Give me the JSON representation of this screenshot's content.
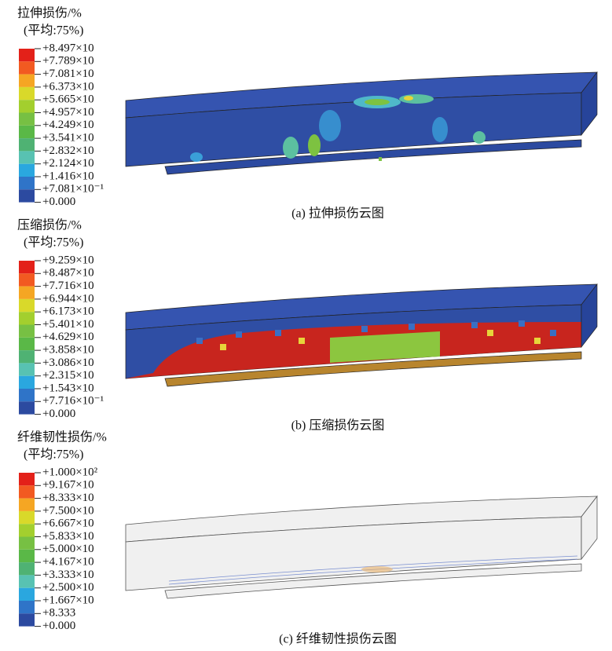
{
  "panels": [
    {
      "legend": {
        "title": "拉伸损伤/%",
        "subtitle": "(平均:75%)",
        "labels": [
          "+8.497×10",
          "+7.789×10",
          "+7.081×10",
          "+6.373×10",
          "+5.665×10",
          "+4.957×10",
          "+4.249×10",
          "+3.541×10",
          "+2.832×10",
          "+2.124×10",
          "+1.416×10",
          "+7.081×10⁻¹",
          "+0.000"
        ]
      },
      "caption": "(a) 拉伸损伤云图"
    },
    {
      "legend": {
        "title": "压缩损伤/%",
        "subtitle": "(平均:75%)",
        "labels": [
          "+9.259×10",
          "+8.487×10",
          "+7.716×10",
          "+6.944×10",
          "+6.173×10",
          "+5.401×10",
          "+4.629×10",
          "+3.858×10",
          "+3.086×10",
          "+2.315×10",
          "+1.543×10",
          "+7.716×10⁻¹",
          "+0.000"
        ]
      },
      "caption": "(b) 压缩损伤云图"
    },
    {
      "legend": {
        "title": "纤维韧性损伤/%",
        "subtitle": "(平均:75%)",
        "labels": [
          "+1.000×10²",
          "+9.167×10",
          "+8.333×10",
          "+7.500×10",
          "+6.667×10",
          "+5.833×10",
          "+5.000×10",
          "+4.167×10",
          "+3.333×10",
          "+2.500×10",
          "+1.667×10",
          "+8.333",
          "+0.000"
        ]
      },
      "caption": "(c) 纤维韧性损伤云图"
    }
  ]
}
